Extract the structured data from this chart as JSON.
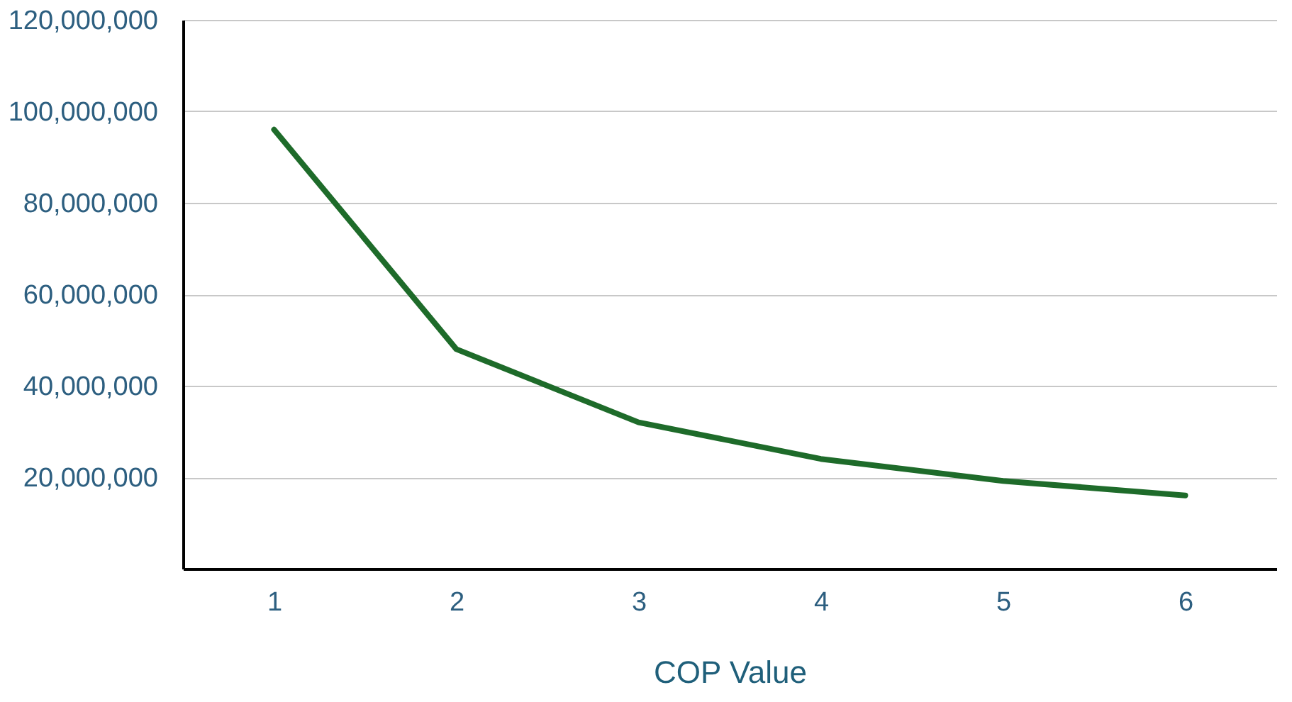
{
  "chart_data": {
    "type": "line",
    "xlabel": "COP Value",
    "categories": [
      "1",
      "2",
      "3",
      "4",
      "5",
      "6"
    ],
    "series": [
      {
        "color": "#1e6b2a",
        "values": [
          96000000,
          48000000,
          32000000,
          24000000,
          19200000,
          16000000
        ]
      }
    ],
    "ylim": [
      0,
      120000000
    ],
    "yticks": [
      {
        "value": 20000000,
        "label": "20,000,000"
      },
      {
        "value": 40000000,
        "label": "40,000,000"
      },
      {
        "value": 60000000,
        "label": "60,000,000"
      },
      {
        "value": 80000000,
        "label": "80,000,000"
      },
      {
        "value": 100000000,
        "label": "100,000,000"
      },
      {
        "value": 120000000,
        "label": "120,000,000"
      }
    ],
    "grid": "y",
    "marker": "none",
    "line_style": "solid"
  }
}
